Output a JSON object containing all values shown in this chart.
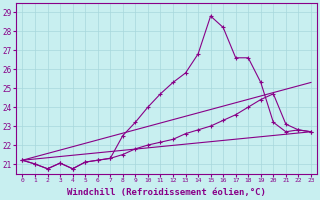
{
  "xlabel": "Windchill (Refroidissement éolien,°C)",
  "xlabel_fontsize": 6.5,
  "background_color": "#c8eff0",
  "grid_color": "#a8d8dc",
  "line_color": "#880088",
  "ylim": [
    20.5,
    29.5
  ],
  "xlim": [
    -0.5,
    23.5
  ],
  "yticks": [
    21,
    22,
    23,
    24,
    25,
    26,
    27,
    28,
    29
  ],
  "xticks": [
    0,
    1,
    2,
    3,
    4,
    5,
    6,
    7,
    8,
    9,
    10,
    11,
    12,
    13,
    14,
    15,
    16,
    17,
    18,
    19,
    20,
    21,
    22,
    23
  ],
  "series": [
    {
      "x": [
        0,
        1,
        2,
        3,
        4,
        5,
        6,
        7,
        8,
        9,
        10,
        11,
        12,
        13,
        14,
        15,
        16,
        17,
        18,
        19,
        20,
        21,
        22,
        23
      ],
      "y": [
        21.2,
        21.0,
        20.75,
        21.05,
        20.75,
        21.1,
        21.2,
        21.3,
        22.5,
        23.2,
        24.0,
        24.7,
        25.3,
        25.8,
        26.8,
        28.8,
        28.2,
        26.6,
        26.6,
        25.3,
        23.2,
        22.7,
        22.8,
        22.7
      ],
      "with_marker": true
    },
    {
      "x": [
        0,
        1,
        2,
        3,
        4,
        5,
        6,
        7,
        8,
        9,
        10,
        11,
        12,
        13,
        14,
        15,
        16,
        17,
        18,
        19,
        20,
        21,
        22,
        23
      ],
      "y": [
        21.2,
        21.0,
        20.75,
        21.05,
        20.75,
        21.1,
        21.2,
        21.3,
        21.5,
        21.8,
        22.0,
        22.15,
        22.3,
        22.6,
        22.8,
        23.0,
        23.3,
        23.6,
        24.0,
        24.4,
        24.7,
        23.1,
        22.8,
        22.7
      ],
      "with_marker": true
    },
    {
      "x": [
        0,
        23
      ],
      "y": [
        21.2,
        22.7
      ],
      "with_marker": false
    },
    {
      "x": [
        0,
        23
      ],
      "y": [
        21.2,
        25.3
      ],
      "with_marker": false
    }
  ]
}
